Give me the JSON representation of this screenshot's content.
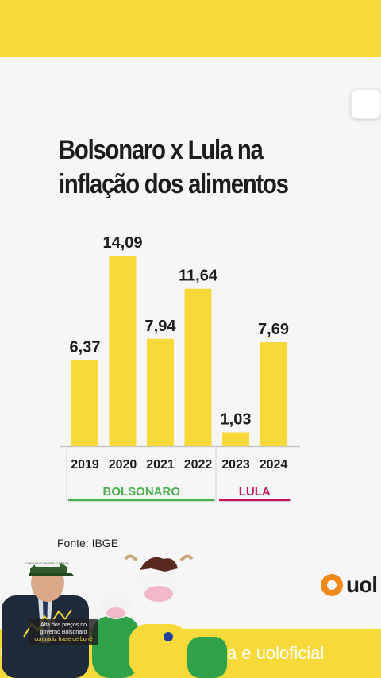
{
  "title": "Bolsonaro x Lula na inflação dos alimentos",
  "source": "Fonte: IBGE",
  "logo": {
    "text": "uol",
    "icon": "uol-logo-icon"
  },
  "caption_left": "uo",
  "caption_right": "a e uoloficial",
  "sticker": {
    "cap_badge": "CHEGA DE DIVIDIR O BRASIL",
    "caption_line1": "Alta dos preços no",
    "caption_line2": "governo Bolsonaro",
    "caption_line3": "contradiz frase de boné"
  },
  "colors": {
    "bar": "#f7d93a",
    "bolsonaro": "#4caf50",
    "lula": "#c2185b",
    "band": "#f7d93a"
  },
  "chart_data": {
    "type": "bar",
    "title": "Bolsonaro x Lula na inflação dos alimentos",
    "categories": [
      "2019",
      "2020",
      "2021",
      "2022",
      "2023",
      "2024"
    ],
    "values": [
      6.37,
      14.09,
      7.94,
      11.64,
      1.03,
      7.69
    ],
    "data_labels": [
      "6,37",
      "14,09",
      "7,94",
      "11,64",
      "1,03",
      "7,69"
    ],
    "groups": [
      {
        "name": "BOLSONARO",
        "categories": [
          "2019",
          "2020",
          "2021",
          "2022"
        ]
      },
      {
        "name": "LULA",
        "categories": [
          "2023",
          "2024"
        ]
      }
    ],
    "xlabel": "",
    "ylabel": "",
    "ylim": [
      0,
      14.09
    ],
    "grid": false
  }
}
